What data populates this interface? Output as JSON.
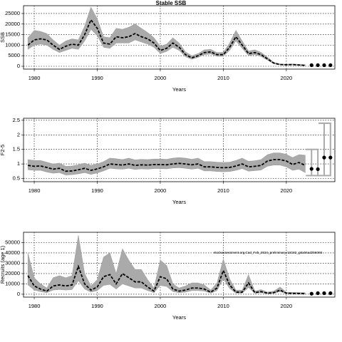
{
  "chart_data": [
    {
      "type": "line",
      "title": "Stable SSB",
      "y_label": "SSB",
      "x_label": "Years",
      "xlim": [
        1978.3,
        2027.7
      ],
      "xticks": [
        1980,
        1990,
        2000,
        2010,
        2020
      ],
      "ylim": [
        -1350,
        28700
      ],
      "yticks": [
        0,
        5000,
        10000,
        15000,
        20000,
        25000
      ],
      "grid": true,
      "x": [
        1979,
        1980,
        1981,
        1982,
        1983,
        1984,
        1985,
        1986,
        1987,
        1988,
        1989,
        1990,
        1991,
        1992,
        1993,
        1994,
        1995,
        1996,
        1997,
        1998,
        1999,
        2000,
        2001,
        2002,
        2003,
        2004,
        2005,
        2006,
        2007,
        2008,
        2009,
        2010,
        2011,
        2012,
        2013,
        2014,
        2015,
        2016,
        2017,
        2018,
        2019,
        2020,
        2021,
        2022,
        2023
      ],
      "values": [
        10000,
        12500,
        13000,
        12500,
        10000,
        8000,
        9500,
        10500,
        10000,
        15000,
        22000,
        18000,
        11000,
        10500,
        14000,
        13500,
        14000,
        15500,
        14000,
        13000,
        11000,
        7500,
        8500,
        11000,
        9000,
        5500,
        4000,
        5000,
        6500,
        6800,
        5500,
        5500,
        9000,
        14000,
        10000,
        6000,
        6500,
        5500,
        3500,
        1500,
        800,
        700,
        800,
        600,
        400
      ],
      "lower": [
        8000,
        10000,
        10500,
        10000,
        8000,
        6500,
        7500,
        8500,
        8000,
        12000,
        17500,
        14500,
        9000,
        8500,
        11000,
        11000,
        11000,
        12500,
        11500,
        10500,
        9000,
        6000,
        7000,
        9000,
        7500,
        4500,
        3300,
        4200,
        5500,
        5800,
        4700,
        4700,
        7500,
        12000,
        8500,
        5000,
        5500,
        4600,
        2900,
        1200,
        600,
        500,
        600,
        400,
        200
      ],
      "upper": [
        13500,
        17000,
        16500,
        15500,
        12500,
        10000,
        12000,
        13000,
        12500,
        19000,
        28000,
        22500,
        14000,
        13500,
        18000,
        17500,
        18500,
        20000,
        18000,
        16000,
        13500,
        9500,
        10500,
        13500,
        11000,
        6800,
        5000,
        6000,
        7800,
        8000,
        6500,
        6600,
        11000,
        17000,
        12000,
        7200,
        7800,
        6600,
        4300,
        1900,
        1100,
        1000,
        1100,
        900,
        800
      ],
      "projection": {
        "x": [
          2024,
          2025,
          2026,
          2027
        ],
        "values": [
          500,
          500,
          500,
          500
        ]
      }
    },
    {
      "type": "line",
      "y_label": "F2-5",
      "x_label": "Years",
      "xlim": [
        1978.3,
        2027.7
      ],
      "xticks": [
        1980,
        1990,
        2000,
        2010,
        2020
      ],
      "ylim": [
        0.39,
        2.57
      ],
      "yticks": [
        0.5,
        1.0,
        1.5,
        2.0,
        2.5
      ],
      "grid": true,
      "x": [
        1979,
        1980,
        1981,
        1982,
        1983,
        1984,
        1985,
        1986,
        1987,
        1988,
        1989,
        1990,
        1991,
        1992,
        1993,
        1994,
        1995,
        1996,
        1997,
        1998,
        1999,
        2000,
        2001,
        2002,
        2003,
        2004,
        2005,
        2006,
        2007,
        2008,
        2009,
        2010,
        2011,
        2012,
        2013,
        2014,
        2015,
        2016,
        2017,
        2018,
        2019,
        2020,
        2021,
        2022,
        2023
      ],
      "values": [
        0.95,
        0.92,
        0.93,
        0.88,
        0.82,
        0.85,
        0.75,
        0.76,
        0.8,
        0.85,
        0.78,
        0.83,
        0.9,
        1.0,
        0.98,
        0.96,
        1.0,
        0.95,
        0.97,
        0.96,
        0.98,
        0.98,
        0.97,
        1.0,
        1.02,
        1.0,
        0.97,
        1.0,
        0.9,
        0.9,
        0.88,
        0.87,
        0.88,
        0.93,
        1.0,
        0.9,
        0.92,
        0.95,
        1.1,
        1.15,
        1.15,
        1.1,
        0.98,
        1.05,
        0.95
      ],
      "lower": [
        0.8,
        0.78,
        0.78,
        0.72,
        0.68,
        0.7,
        0.62,
        0.63,
        0.66,
        0.7,
        0.64,
        0.69,
        0.76,
        0.85,
        0.83,
        0.82,
        0.85,
        0.81,
        0.83,
        0.82,
        0.84,
        0.84,
        0.83,
        0.86,
        0.87,
        0.85,
        0.82,
        0.85,
        0.76,
        0.76,
        0.74,
        0.73,
        0.74,
        0.78,
        0.84,
        0.75,
        0.77,
        0.79,
        0.92,
        0.96,
        0.96,
        0.9,
        0.78,
        0.82,
        0.7
      ],
      "upper": [
        1.15,
        1.12,
        1.12,
        1.06,
        1.0,
        1.03,
        0.92,
        0.93,
        0.97,
        1.03,
        0.95,
        1.0,
        1.08,
        1.2,
        1.18,
        1.15,
        1.2,
        1.14,
        1.16,
        1.15,
        1.17,
        1.17,
        1.16,
        1.2,
        1.22,
        1.2,
        1.16,
        1.2,
        1.08,
        1.08,
        1.06,
        1.05,
        1.06,
        1.12,
        1.2,
        1.09,
        1.11,
        1.15,
        1.32,
        1.38,
        1.38,
        1.33,
        1.22,
        1.32,
        1.3
      ],
      "projection": {
        "x": [
          2024,
          2025,
          2026,
          2027
        ],
        "values": [
          0.83,
          0.82,
          1.22,
          1.22
        ],
        "lower": [
          0.6,
          0.6,
          0.6,
          0.6
        ],
        "upper": [
          1.5,
          1.5,
          2.4,
          2.4
        ]
      }
    },
    {
      "type": "line",
      "y_label": "Recruits (age 1)",
      "x_label": "Years",
      "annotation": "stockassessment.org,Cod_Feb_2024_preliminary,r18192_g8a56ad2b6086",
      "xlim": [
        1978.3,
        2027.7
      ],
      "xticks": [
        1980,
        1990,
        2000,
        2010,
        2020
      ],
      "ylim": [
        -2800,
        60000
      ],
      "yticks": [
        0,
        10000,
        20000,
        30000,
        40000,
        50000
      ],
      "grid": true,
      "x": [
        1979,
        1980,
        1981,
        1982,
        1983,
        1984,
        1985,
        1986,
        1987,
        1988,
        1989,
        1990,
        1991,
        1992,
        1993,
        1994,
        1995,
        1996,
        1997,
        1998,
        1999,
        2000,
        2001,
        2002,
        2003,
        2004,
        2005,
        2006,
        2007,
        2008,
        2009,
        2010,
        2011,
        2012,
        2013,
        2014,
        2015,
        2016,
        2017,
        2018,
        2019,
        2020,
        2021,
        2022,
        2023
      ],
      "values": [
        18000,
        8000,
        5000,
        3000,
        8000,
        9000,
        8000,
        9000,
        27000,
        10000,
        4000,
        7000,
        17000,
        19000,
        10000,
        20000,
        16000,
        12000,
        12000,
        7000,
        3000,
        17000,
        15000,
        5000,
        3000,
        4000,
        6000,
        6000,
        5000,
        2000,
        6000,
        23000,
        9000,
        2000,
        2000,
        11000,
        1500,
        2500,
        1000,
        1500,
        4000,
        1000,
        800,
        700,
        500
      ],
      "lower": [
        9000,
        4000,
        2500,
        1500,
        4000,
        4500,
        4000,
        4500,
        13000,
        5000,
        2000,
        3500,
        8500,
        9500,
        5000,
        10000,
        8000,
        6000,
        6000,
        3500,
        1500,
        8500,
        7500,
        2500,
        1500,
        2000,
        3500,
        3500,
        3000,
        1000,
        3500,
        15000,
        5500,
        1000,
        1000,
        6500,
        800,
        1500,
        500,
        800,
        2500,
        500,
        300,
        200,
        100
      ],
      "upper": [
        40000,
        16000,
        10000,
        6000,
        16000,
        18000,
        16000,
        18000,
        57000,
        20000,
        8000,
        14000,
        36000,
        40000,
        20000,
        44000,
        33000,
        24000,
        24000,
        14000,
        6000,
        33000,
        28000,
        10000,
        6000,
        8000,
        11000,
        11000,
        9000,
        4000,
        11000,
        34000,
        15000,
        4000,
        4000,
        19000,
        3000,
        4500,
        2000,
        3000,
        7000,
        2000,
        1800,
        1700,
        1500
      ],
      "projection": {
        "x": [
          2024,
          2025,
          2026,
          2027
        ],
        "values": [
          500,
          1000,
          1000,
          1000
        ]
      }
    }
  ]
}
